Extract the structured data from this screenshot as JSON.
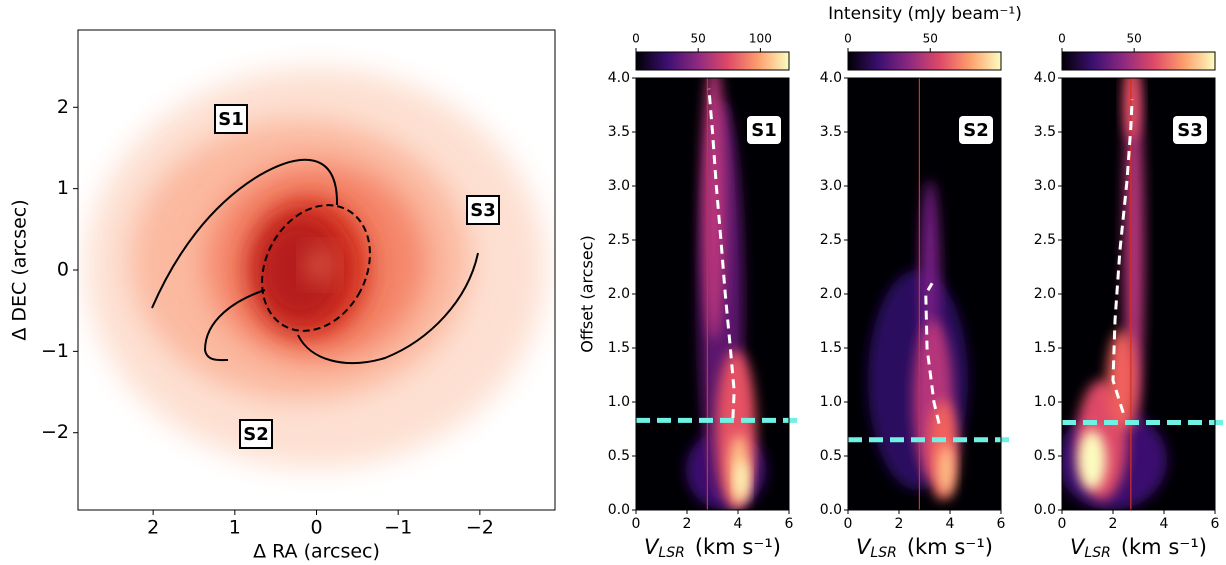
{
  "figure": {
    "colorbar_label": "Intensity (mJy beam⁻¹)"
  },
  "chart_data": [
    {
      "type": "image",
      "xlabel": "Δ RA (arcsec)",
      "ylabel": "Δ DEC (arcsec)",
      "xlim": [
        2.92,
        -2.92
      ],
      "ylim": [
        -2.95,
        2.95
      ],
      "xticks": [
        2,
        1,
        0,
        {
          "value": -1,
          "label": "−1"
        },
        {
          "value": -2,
          "label": "−2"
        }
      ],
      "yticks": [
        {
          "value": -2,
          "label": "−2"
        },
        {
          "value": -1,
          "label": "−1"
        },
        0,
        1,
        2
      ],
      "annotations": [
        "S1",
        "S2",
        "S3"
      ]
    },
    {
      "type": "pv",
      "label": "S1",
      "ylabel": "Offset (arcsec)",
      "xlabel": {
        "symbol": "V",
        "subscript": "LSR",
        "unit": "(km s⁻¹)"
      },
      "xlim": [
        0,
        6
      ],
      "xticks": [
        0,
        2,
        4,
        6
      ],
      "ylim": [
        0,
        4
      ],
      "yticks": [
        {
          "value": 0,
          "label": "0.0"
        },
        {
          "value": 0.5,
          "label": "0.5"
        },
        {
          "value": 1,
          "label": "1.0"
        },
        {
          "value": 1.5,
          "label": "1.5"
        },
        {
          "value": 2,
          "label": "2.0"
        },
        {
          "value": 2.5,
          "label": "2.5"
        },
        {
          "value": 3,
          "label": "3.0"
        },
        {
          "value": 3.5,
          "label": "3.5"
        },
        {
          "value": 4,
          "label": "4.0"
        }
      ],
      "colorbar": {
        "lim": [
          0,
          123
        ],
        "ticks": [
          0,
          50,
          100
        ]
      },
      "vline": 2.8,
      "vline_color": "#d62f1f",
      "hline": 0.83,
      "hline_color": "#6ff2e4",
      "model": {
        "color": "#ffffff",
        "x": [
          3.8,
          3.85,
          3.7,
          3.5,
          3.33,
          3.15,
          3.0,
          2.86
        ],
        "y": [
          0.85,
          1.1,
          1.5,
          2.0,
          2.5,
          3.0,
          3.5,
          3.9
        ]
      }
    },
    {
      "type": "pv",
      "label": "S2",
      "xlabel": {
        "symbol": "V",
        "subscript": "LSR",
        "unit": "(km s⁻¹)"
      },
      "xlim": [
        0,
        6
      ],
      "xticks": [
        0,
        2,
        4,
        6
      ],
      "ylim": [
        0,
        4
      ],
      "yticks": [
        {
          "value": 0,
          "label": "0.0"
        },
        {
          "value": 0.5,
          "label": "0.5"
        },
        {
          "value": 1,
          "label": "1.0"
        },
        {
          "value": 1.5,
          "label": "1.5"
        },
        {
          "value": 2,
          "label": "2.0"
        },
        {
          "value": 2.5,
          "label": "2.5"
        },
        {
          "value": 3,
          "label": "3.0"
        },
        {
          "value": 3.5,
          "label": "3.5"
        },
        {
          "value": 4,
          "label": "4.0"
        }
      ],
      "colorbar": {
        "lim": [
          0,
          93
        ],
        "ticks": [
          0,
          50
        ]
      },
      "vline": 2.8,
      "vline_color": "#d62f1f",
      "hline": 0.65,
      "hline_color": "#6ff2e4",
      "model": {
        "color": "#ffffff",
        "x": [
          3.57,
          3.37,
          3.1,
          3.05,
          3.3
        ],
        "y": [
          0.8,
          1.0,
          1.5,
          2.0,
          2.1
        ]
      }
    },
    {
      "type": "pv",
      "label": "S3",
      "xlabel": {
        "symbol": "V",
        "subscript": "LSR",
        "unit": "(km s⁻¹)"
      },
      "xlim": [
        0,
        6
      ],
      "xticks": [
        0,
        2,
        4,
        6
      ],
      "ylim": [
        0,
        4
      ],
      "yticks": [
        {
          "value": 0,
          "label": "0.0"
        },
        {
          "value": 0.5,
          "label": "0.5"
        },
        {
          "value": 1,
          "label": "1.0"
        },
        {
          "value": 1.5,
          "label": "1.5"
        },
        {
          "value": 2,
          "label": "2.0"
        },
        {
          "value": 2.5,
          "label": "2.5"
        },
        {
          "value": 3,
          "label": "3.0"
        },
        {
          "value": 3.5,
          "label": "3.5"
        },
        {
          "value": 4,
          "label": "4.0"
        }
      ],
      "colorbar": {
        "lim": [
          0,
          106
        ],
        "ticks": [
          0,
          50
        ]
      },
      "vline": 2.7,
      "vline_color": "#d62f1f",
      "hline": 0.81,
      "hline_color": "#6ff2e4",
      "model": {
        "color": "#ffffff",
        "x": [
          2.4,
          2.0,
          2.08,
          2.27,
          2.55,
          2.7,
          2.75
        ],
        "y": [
          0.9,
          1.2,
          1.76,
          2.4,
          3.05,
          3.55,
          3.8
        ]
      }
    }
  ]
}
